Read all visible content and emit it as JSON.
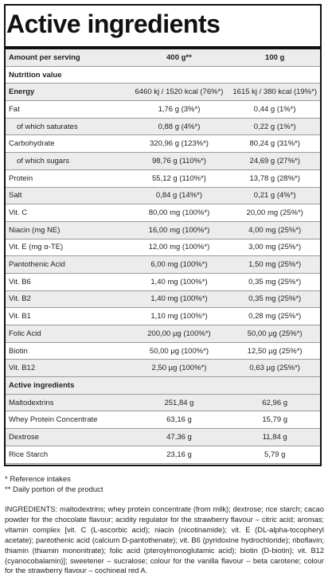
{
  "title": "Active ingredients",
  "header": {
    "label": "Amount per serving",
    "col1": "400 g**",
    "col2": "100 g"
  },
  "section_nutrition": "Nutrition value",
  "nutrition_rows": [
    {
      "label": "Energy",
      "v1": "6460 kj / 1520 kcal (76%*)",
      "v2": "1615 kj / 380 kcal (19%*)",
      "bold": true
    },
    {
      "label": "Fat",
      "v1": "1,76 g (3%*)",
      "v2": "0,44 g (1%*)"
    },
    {
      "label": "of which saturates",
      "v1": "0,88 g (4%*)",
      "v2": "0,22 g (1%*)",
      "sub": true
    },
    {
      "label": "Carbohydrate",
      "v1": "320,96 g (123%*)",
      "v2": "80,24 g (31%*)"
    },
    {
      "label": "of which sugars",
      "v1": "98,76 g (110%*)",
      "v2": "24,69 g (27%*)",
      "sub": true
    },
    {
      "label": "Protein",
      "v1": "55,12 g (110%*)",
      "v2": "13,78 g (28%*)"
    },
    {
      "label": "Salt",
      "v1": "0,84 g (14%*)",
      "v2": "0,21 g (4%*)"
    },
    {
      "label": "Vit. C",
      "v1": "80,00 mg (100%*)",
      "v2": "20,00 mg (25%*)"
    },
    {
      "label": "Niacin (mg NE)",
      "v1": "16,00 mg (100%*)",
      "v2": "4,00 mg (25%*)"
    },
    {
      "label": "Vit. E (mg α-TE)",
      "v1": "12,00 mg (100%*)",
      "v2": "3,00 mg (25%*)"
    },
    {
      "label": "Pantothenic Acid",
      "v1": "6,00 mg (100%*)",
      "v2": "1,50 mg (25%*)"
    },
    {
      "label": "Vit. B6",
      "v1": "1,40 mg (100%*)",
      "v2": "0,35 mg (25%*)"
    },
    {
      "label": "Vit. B2",
      "v1": "1,40 mg (100%*)",
      "v2": "0,35 mg (25%*)"
    },
    {
      "label": "Vit. B1",
      "v1": "1,10 mg (100%*)",
      "v2": "0,28 mg (25%*)"
    },
    {
      "label": "Folic Acid",
      "v1": "200,00 µg (100%*)",
      "v2": "50,00 µg (25%*)"
    },
    {
      "label": "Biotin",
      "v1": "50,00 µg (100%*)",
      "v2": "12,50 µg (25%*)"
    },
    {
      "label": "Vit. B12",
      "v1": "2,50 µg (100%*)",
      "v2": "0,63 µg (25%*)"
    }
  ],
  "section_active": "Active ingredients",
  "active_rows": [
    {
      "label": "Maltodextrins",
      "v1": "251,84 g",
      "v2": "62,96 g"
    },
    {
      "label": "Whey Protein Concentrate",
      "v1": "63,16 g",
      "v2": "15,79 g"
    },
    {
      "label": "Dextrose",
      "v1": "47,36 g",
      "v2": "11,84 g"
    },
    {
      "label": "Rice Starch",
      "v1": "23,16 g",
      "v2": "5,79 g"
    }
  ],
  "notes": [
    "* Reference intakes",
    "** Daily portion of the product"
  ],
  "ingredients_text": "INGREDIENTS: maltodextrins; whey protein concentrate (from milk); dextrose; rice starch; cacao powder for the chocolate flavour; acidity regulator for the strawberry flavour – citric acid; aromas; vitamin complex [vit. C (L-ascorbic acid); niacin (nicotinamide); vit. E (DL-alpha-tocopheryl acetate); pantothenic acid (calcium D-pantothenate); vit. B6 (pyridoxine hydrochloride); riboflavin; thiamin (thiamin mononitrate); folic acid (pteroylmonoglutamic acid); biotin (D-biotin); vit. B12 (cyanocobalamin)]; sweetener – sucralose; colour for the vanilla flavour – beta carotene; colour for the strawberry flavour – cochineal red A."
}
